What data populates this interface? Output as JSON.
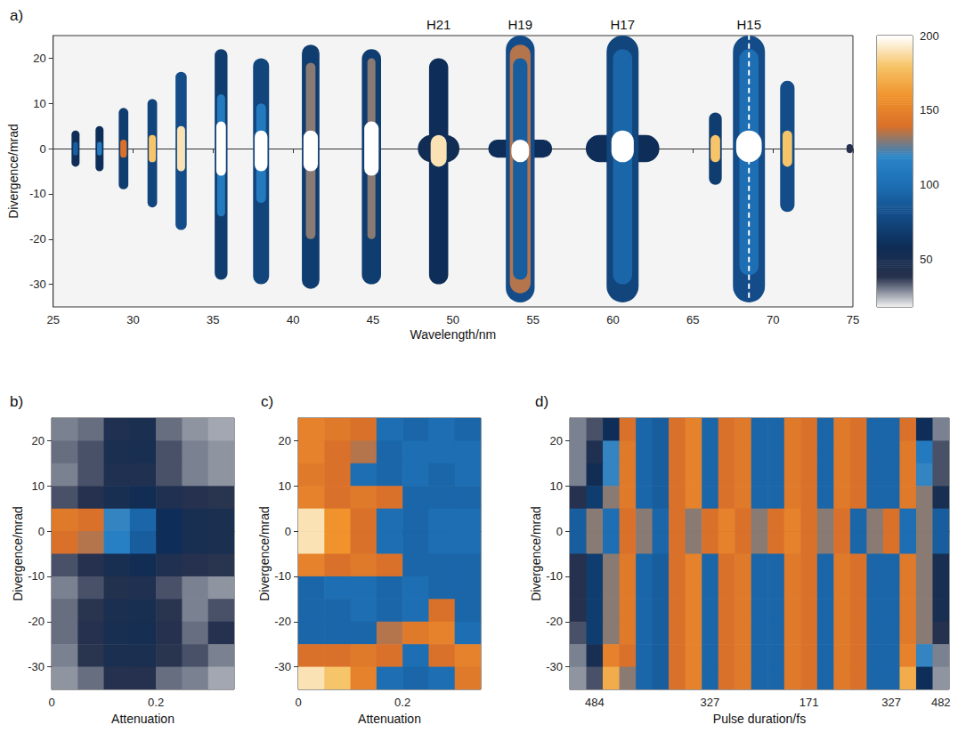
{
  "chart_data": [
    {
      "type": "heatmap",
      "title": "a)",
      "x_label": "Wavelength/nm",
      "y_label": "Divergence/mrad",
      "xlim": [
        25,
        75
      ],
      "xticks": [
        25,
        30,
        35,
        40,
        45,
        50,
        55,
        60,
        65,
        70,
        75
      ],
      "ylim": [
        -35,
        25
      ],
      "yticks": [
        -30,
        -20,
        -10,
        0,
        10,
        20
      ],
      "colorbar": {
        "range": [
          18,
          200
        ],
        "ticks": [
          50,
          100,
          150,
          200
        ]
      },
      "annotations": [
        {
          "text": "H21",
          "x": 49.1
        },
        {
          "text": "H19",
          "x": 54.2
        },
        {
          "text": "H17",
          "x": 60.6
        },
        {
          "text": "H15",
          "x": 68.5
        }
      ],
      "lines": [
        {
          "x": 68.5,
          "y": [
            -33,
            25
          ],
          "color": "#ffffff",
          "line_style": "dashed"
        }
      ],
      "spots": [
        {
          "wavelength": 26.4,
          "halfwidth": 0.25,
          "ymin": -4,
          "ymax": 4,
          "value": 60
        },
        {
          "wavelength": 26.4,
          "halfwidth": 0.15,
          "ymin": -1.5,
          "ymax": 1.5,
          "value": 90
        },
        {
          "wavelength": 27.9,
          "halfwidth": 0.25,
          "ymin": -5,
          "ymax": 5,
          "value": 60
        },
        {
          "wavelength": 27.9,
          "halfwidth": 0.15,
          "ymin": -1.5,
          "ymax": 1.5,
          "value": 110
        },
        {
          "wavelength": 29.4,
          "halfwidth": 0.3,
          "ymin": -9,
          "ymax": 9,
          "value": 70
        },
        {
          "wavelength": 29.4,
          "halfwidth": 0.2,
          "ymin": -2,
          "ymax": 2,
          "value": 140
        },
        {
          "wavelength": 31.2,
          "halfwidth": 0.3,
          "ymin": -13,
          "ymax": 11,
          "value": 75
        },
        {
          "wavelength": 31.2,
          "halfwidth": 0.22,
          "ymin": -3,
          "ymax": 3,
          "value": 180
        },
        {
          "wavelength": 33.0,
          "halfwidth": 0.35,
          "ymin": -18,
          "ymax": 17,
          "value": 80
        },
        {
          "wavelength": 33.0,
          "halfwidth": 0.25,
          "ymin": -5,
          "ymax": 5,
          "value": 190
        },
        {
          "wavelength": 35.5,
          "halfwidth": 0.4,
          "ymin": -29,
          "ymax": 22,
          "value": 70
        },
        {
          "wavelength": 35.5,
          "halfwidth": 0.25,
          "ymin": -15,
          "ymax": 12,
          "value": 110
        },
        {
          "wavelength": 35.5,
          "halfwidth": 0.3,
          "ymin": -6,
          "ymax": 6,
          "value": 200
        },
        {
          "wavelength": 38.0,
          "halfwidth": 0.5,
          "ymin": -30,
          "ymax": 20,
          "value": 75
        },
        {
          "wavelength": 38.0,
          "halfwidth": 0.3,
          "ymin": -12,
          "ymax": 10,
          "value": 110
        },
        {
          "wavelength": 38.0,
          "halfwidth": 0.4,
          "ymin": -5,
          "ymax": 4,
          "value": 200
        },
        {
          "wavelength": 41.1,
          "halfwidth": 0.55,
          "ymin": -31,
          "ymax": 23,
          "value": 70
        },
        {
          "wavelength": 41.1,
          "halfwidth": 0.3,
          "ymin": -20,
          "ymax": 19,
          "value": 130
        },
        {
          "wavelength": 41.1,
          "halfwidth": 0.45,
          "ymin": -5,
          "ymax": 4,
          "value": 200
        },
        {
          "wavelength": 44.9,
          "halfwidth": 0.6,
          "ymin": -30,
          "ymax": 22,
          "value": 70
        },
        {
          "wavelength": 44.9,
          "halfwidth": 0.25,
          "ymin": -20,
          "ymax": 20,
          "value": 130
        },
        {
          "wavelength": 44.9,
          "halfwidth": 0.45,
          "ymin": -6,
          "ymax": 6,
          "value": 200
        },
        {
          "wavelength": 49.1,
          "halfwidth": 1.3,
          "ymin": -3,
          "ymax": 3,
          "value": 55
        },
        {
          "wavelength": 49.1,
          "halfwidth": 0.6,
          "ymin": -30,
          "ymax": 20,
          "value": 60
        },
        {
          "wavelength": 49.1,
          "halfwidth": 0.5,
          "ymin": -4,
          "ymax": 3,
          "value": 190
        },
        {
          "wavelength": 54.2,
          "halfwidth": 2,
          "ymin": -2,
          "ymax": 2,
          "value": 60
        },
        {
          "wavelength": 54.2,
          "halfwidth": 0.9,
          "ymin": -34,
          "ymax": 25,
          "value": 80
        },
        {
          "wavelength": 54.2,
          "halfwidth": 0.65,
          "ymin": -32,
          "ymax": 23,
          "value": 135
        },
        {
          "wavelength": 54.2,
          "halfwidth": 0.45,
          "ymin": -29,
          "ymax": 20,
          "value": 90
        },
        {
          "wavelength": 54.2,
          "halfwidth": 0.55,
          "ymin": -3,
          "ymax": 2,
          "value": 200
        },
        {
          "wavelength": 60.6,
          "halfwidth": 2.3,
          "ymin": -3,
          "ymax": 3,
          "value": 60
        },
        {
          "wavelength": 60.6,
          "halfwidth": 1.0,
          "ymin": -34,
          "ymax": 25,
          "value": 75
        },
        {
          "wavelength": 60.6,
          "halfwidth": 0.6,
          "ymin": -30,
          "ymax": 22,
          "value": 95
        },
        {
          "wavelength": 60.6,
          "halfwidth": 0.7,
          "ymin": -3,
          "ymax": 4,
          "value": 200
        },
        {
          "wavelength": 66.4,
          "halfwidth": 0.4,
          "ymin": -8,
          "ymax": 8,
          "value": 70
        },
        {
          "wavelength": 66.4,
          "halfwidth": 0.3,
          "ymin": -3,
          "ymax": 3,
          "value": 180
        },
        {
          "wavelength": 70.9,
          "halfwidth": 0.45,
          "ymin": -14,
          "ymax": 15,
          "value": 80
        },
        {
          "wavelength": 70.9,
          "halfwidth": 0.3,
          "ymin": -4,
          "ymax": 4,
          "value": 180
        },
        {
          "wavelength": 68.5,
          "halfwidth": 1.0,
          "ymin": -34,
          "ymax": 25,
          "value": 80
        },
        {
          "wavelength": 68.5,
          "halfwidth": 0.6,
          "ymin": -28,
          "ymax": 22,
          "value": 100
        },
        {
          "wavelength": 68.5,
          "halfwidth": 0.8,
          "ymin": -3,
          "ymax": 4,
          "value": 200
        },
        {
          "wavelength": 74.8,
          "halfwidth": 0.2,
          "ymin": -1,
          "ymax": 1,
          "value": 40
        }
      ]
    },
    {
      "type": "heatmap",
      "title": "b)",
      "x_label": "Attenuation",
      "y_label": "Divergence/mrad",
      "xlim": [
        0,
        0.35
      ],
      "xticks": [
        0,
        0.2
      ],
      "ylim": [
        -35,
        25
      ],
      "yticks": [
        -30,
        -20,
        -10,
        0,
        10,
        20
      ],
      "x": [
        0.025,
        0.075,
        0.125,
        0.175,
        0.225,
        0.275,
        0.325
      ],
      "y": [
        22.5,
        17.5,
        12.5,
        7.5,
        2.5,
        -2.5,
        -7.5,
        -12.5,
        -17.5,
        -22.5,
        -27.5,
        -32.5
      ],
      "cells": [
        [
          30,
          32,
          45,
          48,
          32,
          28,
          26
        ],
        [
          32,
          35,
          48,
          50,
          35,
          30,
          28
        ],
        [
          30,
          35,
          45,
          45,
          35,
          30,
          28
        ],
        [
          35,
          40,
          50,
          55,
          45,
          40,
          38
        ],
        [
          145,
          140,
          120,
          95,
          60,
          50,
          48
        ],
        [
          140,
          135,
          115,
          90,
          60,
          50,
          48
        ],
        [
          35,
          40,
          50,
          55,
          45,
          40,
          38
        ],
        [
          30,
          35,
          42,
          45,
          35,
          30,
          28
        ],
        [
          32,
          38,
          48,
          50,
          38,
          30,
          35
        ],
        [
          32,
          40,
          50,
          52,
          40,
          32,
          40
        ],
        [
          30,
          38,
          48,
          48,
          38,
          35,
          30
        ],
        [
          28,
          32,
          40,
          40,
          32,
          30,
          26
        ]
      ]
    },
    {
      "type": "heatmap",
      "title": "c)",
      "x_label": "Attenuation",
      "y_label": "Divergence/mrad",
      "xlim": [
        0,
        0.35
      ],
      "xticks": [
        0,
        0.2
      ],
      "ylim": [
        -35,
        25
      ],
      "yticks": [
        -30,
        -20,
        -10,
        0,
        10,
        20
      ],
      "x": [
        0.025,
        0.075,
        0.125,
        0.175,
        0.225,
        0.275,
        0.325
      ],
      "y": [
        22.5,
        17.5,
        12.5,
        7.5,
        2.5,
        -2.5,
        -7.5,
        -12.5,
        -17.5,
        -22.5,
        -27.5,
        -32.5
      ],
      "cells": [
        [
          150,
          145,
          140,
          100,
          95,
          100,
          95
        ],
        [
          150,
          140,
          135,
          95,
          100,
          100,
          100
        ],
        [
          145,
          140,
          100,
          95,
          100,
          95,
          100
        ],
        [
          150,
          140,
          145,
          140,
          95,
          95,
          95
        ],
        [
          190,
          160,
          140,
          100,
          95,
          100,
          100
        ],
        [
          190,
          160,
          140,
          100,
          95,
          100,
          100
        ],
        [
          150,
          140,
          145,
          140,
          95,
          95,
          95
        ],
        [
          95,
          100,
          100,
          95,
          100,
          95,
          95
        ],
        [
          95,
          95,
          100,
          95,
          100,
          140,
          95
        ],
        [
          95,
          95,
          95,
          135,
          145,
          150,
          100
        ],
        [
          140,
          140,
          145,
          140,
          100,
          140,
          150
        ],
        [
          190,
          180,
          150,
          100,
          95,
          100,
          145
        ]
      ]
    },
    {
      "type": "heatmap",
      "title": "d)",
      "x_label": "Pulse duration/fs",
      "y_label": "Divergence/mrad",
      "ylim": [
        -35,
        25
      ],
      "yticks": [
        -30,
        -20,
        -10,
        0,
        10,
        20
      ],
      "categories": [
        null,
        "484",
        null,
        null,
        null,
        null,
        null,
        null,
        "327",
        null,
        null,
        null,
        null,
        null,
        "171",
        null,
        null,
        null,
        null,
        "327",
        null,
        null,
        "482"
      ],
      "y": [
        22.5,
        17.5,
        12.5,
        7.5,
        2.5,
        -2.5,
        -7.5,
        -12.5,
        -17.5,
        -22.5,
        -27.5,
        -32.5
      ],
      "cells": [
        [
          30,
          35,
          60,
          140,
          95,
          90,
          140,
          150,
          95,
          140,
          145,
          95,
          95,
          145,
          140,
          95,
          145,
          140,
          95,
          95,
          140,
          60,
          30
        ],
        [
          30,
          45,
          120,
          145,
          95,
          90,
          140,
          150,
          95,
          140,
          145,
          95,
          95,
          145,
          140,
          95,
          145,
          140,
          95,
          95,
          145,
          110,
          35
        ],
        [
          30,
          55,
          120,
          145,
          95,
          90,
          140,
          150,
          95,
          140,
          145,
          95,
          95,
          145,
          140,
          95,
          145,
          140,
          95,
          95,
          145,
          120,
          35
        ],
        [
          40,
          70,
          130,
          145,
          95,
          90,
          140,
          150,
          95,
          140,
          145,
          95,
          95,
          145,
          140,
          95,
          145,
          140,
          95,
          95,
          145,
          130,
          50
        ],
        [
          90,
          130,
          100,
          140,
          130,
          95,
          140,
          130,
          140,
          150,
          140,
          130,
          140,
          150,
          140,
          130,
          140,
          95,
          130,
          140,
          100,
          130,
          90
        ],
        [
          90,
          130,
          100,
          140,
          130,
          95,
          140,
          130,
          140,
          150,
          140,
          130,
          140,
          150,
          140,
          130,
          140,
          95,
          130,
          140,
          100,
          130,
          90
        ],
        [
          40,
          70,
          130,
          145,
          95,
          90,
          140,
          150,
          95,
          140,
          145,
          95,
          95,
          145,
          140,
          95,
          145,
          140,
          95,
          95,
          145,
          130,
          50
        ],
        [
          40,
          70,
          130,
          145,
          95,
          90,
          140,
          150,
          95,
          140,
          145,
          95,
          95,
          145,
          140,
          95,
          145,
          140,
          95,
          95,
          145,
          130,
          50
        ],
        [
          40,
          70,
          130,
          145,
          95,
          90,
          140,
          150,
          95,
          140,
          145,
          95,
          95,
          145,
          140,
          95,
          145,
          140,
          95,
          95,
          145,
          130,
          50
        ],
        [
          35,
          70,
          130,
          145,
          95,
          90,
          140,
          150,
          95,
          140,
          145,
          95,
          95,
          145,
          140,
          95,
          145,
          140,
          95,
          95,
          145,
          130,
          40
        ],
        [
          30,
          50,
          150,
          140,
          95,
          90,
          140,
          150,
          95,
          140,
          145,
          95,
          95,
          145,
          140,
          95,
          145,
          140,
          95,
          95,
          150,
          120,
          30
        ],
        [
          28,
          35,
          170,
          130,
          95,
          90,
          140,
          150,
          95,
          140,
          145,
          95,
          95,
          145,
          140,
          95,
          145,
          140,
          95,
          95,
          170,
          60,
          28
        ]
      ]
    }
  ]
}
